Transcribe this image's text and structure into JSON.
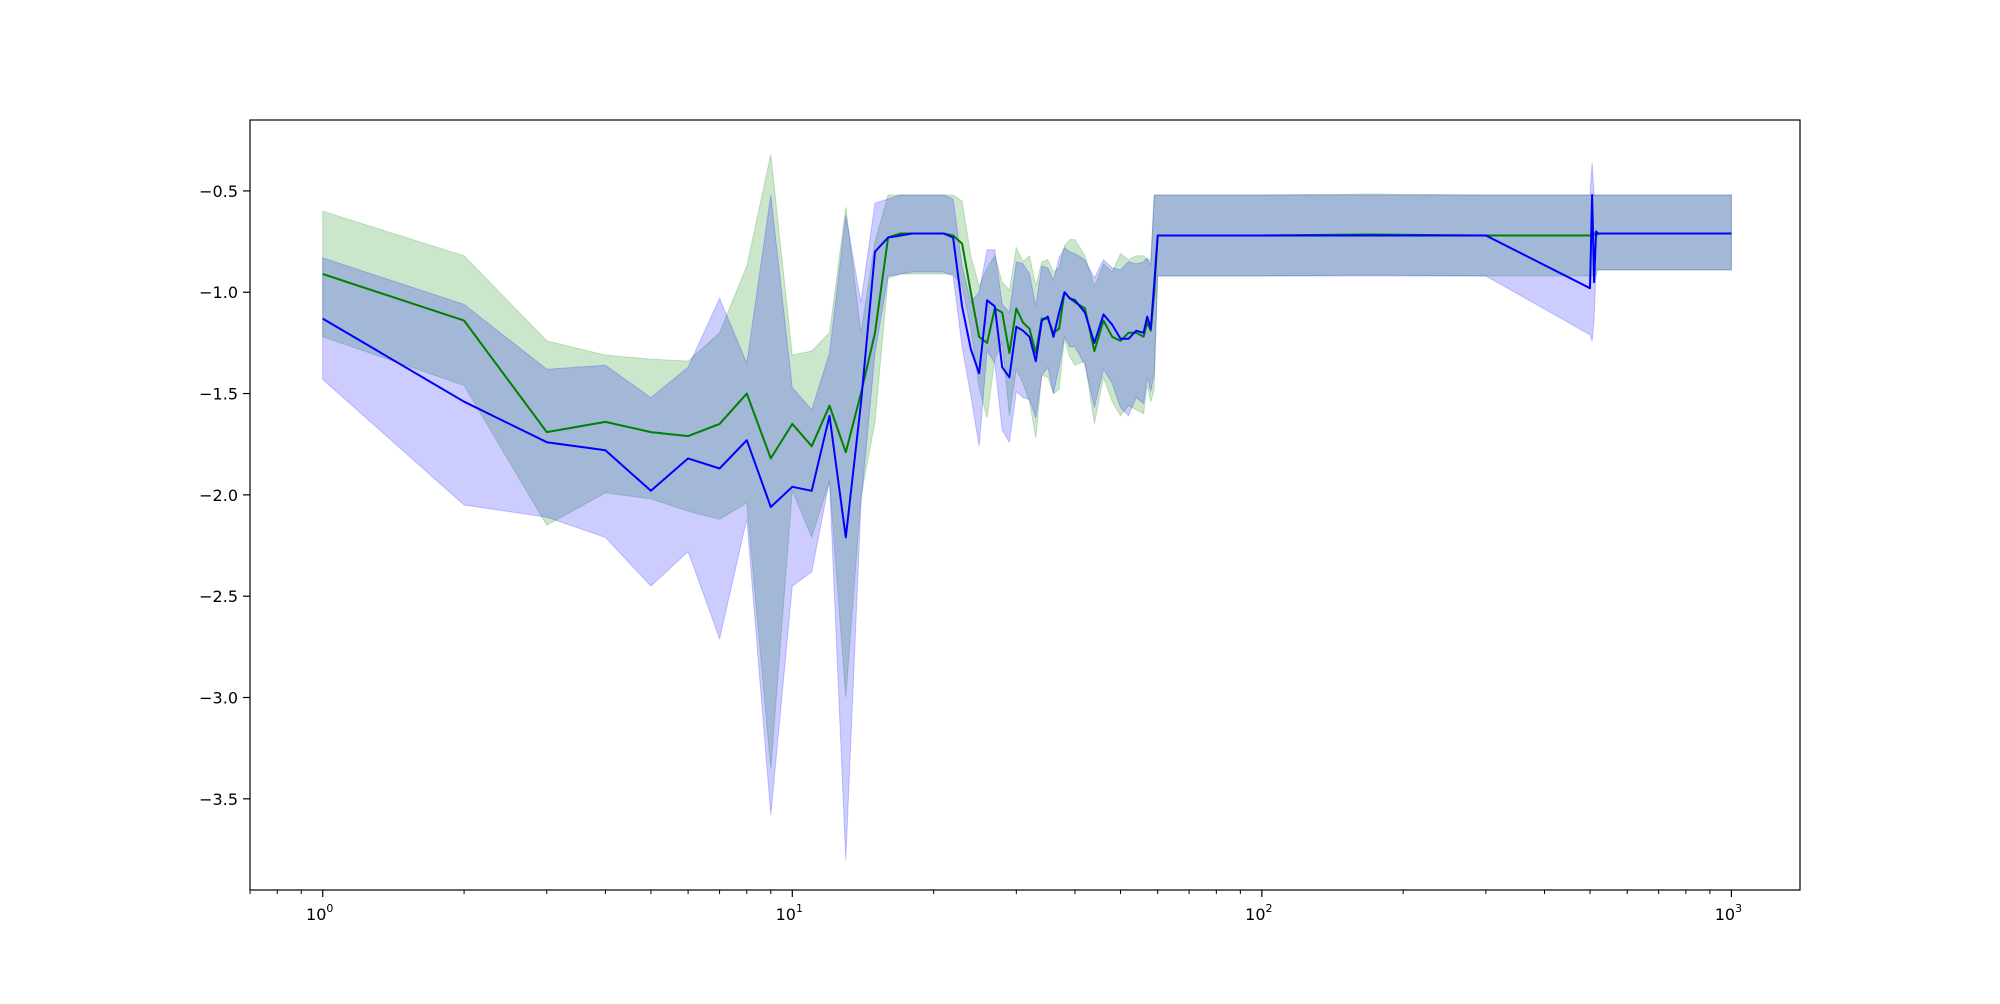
{
  "chart_data": {
    "type": "line",
    "title": "",
    "xlabel": "",
    "ylabel": "",
    "xscale": "log",
    "xlim": [
      0.7,
      1400
    ],
    "ylim": [
      -3.95,
      -0.15
    ],
    "grid": false,
    "legend": "none",
    "x_ticks": [
      {
        "value": 1,
        "base": "10",
        "exp": "0"
      },
      {
        "value": 10,
        "base": "10",
        "exp": "1"
      },
      {
        "value": 100,
        "base": "10",
        "exp": "2"
      },
      {
        "value": 1000,
        "base": "10",
        "exp": "3"
      }
    ],
    "y_ticks": [
      {
        "value": -0.5,
        "label": "−0.5"
      },
      {
        "value": -1.0,
        "label": "−1.0"
      },
      {
        "value": -1.5,
        "label": "−1.5"
      },
      {
        "value": -2.0,
        "label": "−2.0"
      },
      {
        "value": -2.5,
        "label": "−2.5"
      },
      {
        "value": -3.0,
        "label": "−3.0"
      },
      {
        "value": -3.5,
        "label": "−3.5"
      }
    ],
    "series": [
      {
        "color": "#008000",
        "band_color": "#008000",
        "band_opacity": 0.2,
        "x": [
          1,
          2,
          3,
          4,
          5,
          6,
          7,
          8,
          9,
          10,
          11,
          12,
          13,
          14,
          15,
          16,
          17,
          18,
          19,
          20,
          21,
          22,
          23,
          24,
          25,
          26,
          27,
          28,
          29,
          30,
          31,
          32,
          33,
          34,
          35,
          36,
          37,
          38,
          39,
          40,
          42,
          44,
          46,
          48,
          50,
          52,
          54,
          56,
          57,
          58,
          59,
          60,
          100,
          170,
          300,
          500,
          505,
          510,
          515,
          520,
          600,
          1000
        ],
        "y": [
          -0.91,
          -1.14,
          -1.69,
          -1.64,
          -1.69,
          -1.71,
          -1.65,
          -1.5,
          -1.82,
          -1.65,
          -1.76,
          -1.56,
          -1.79,
          -1.5,
          -1.2,
          -0.73,
          -0.71,
          -0.71,
          -0.71,
          -0.71,
          -0.71,
          -0.72,
          -0.76,
          -1.0,
          -1.22,
          -1.25,
          -1.08,
          -1.1,
          -1.3,
          -1.08,
          -1.15,
          -1.18,
          -1.3,
          -1.13,
          -1.13,
          -1.2,
          -1.18,
          -1.0,
          -1.03,
          -1.05,
          -1.08,
          -1.29,
          -1.14,
          -1.22,
          -1.24,
          -1.2,
          -1.2,
          -1.22,
          -1.15,
          -1.19,
          -1.0,
          -0.72,
          -0.72,
          -0.715,
          -0.72,
          -0.72,
          -0.72,
          -0.71,
          -0.72,
          -0.71,
          -0.71,
          -0.71
        ],
        "upper": [
          -0.6,
          -0.82,
          -1.24,
          -1.31,
          -1.33,
          -1.34,
          -1.2,
          -0.87,
          -0.32,
          -1.31,
          -1.29,
          -1.2,
          -0.58,
          -1.2,
          -0.75,
          -0.52,
          -0.52,
          -0.52,
          -0.52,
          -0.52,
          -0.52,
          -0.52,
          -0.55,
          -0.82,
          -0.97,
          -0.88,
          -0.82,
          -0.95,
          -0.99,
          -0.78,
          -0.85,
          -0.82,
          -0.97,
          -0.85,
          -0.84,
          -0.9,
          -0.88,
          -0.77,
          -0.74,
          -0.74,
          -0.82,
          -0.97,
          -0.86,
          -0.9,
          -0.81,
          -0.84,
          -0.82,
          -0.82,
          -0.84,
          -0.84,
          -0.52,
          -0.52,
          -0.52,
          -0.515,
          -0.52,
          -0.52,
          -0.52,
          -0.52,
          -0.52,
          -0.52,
          -0.52,
          -0.52
        ],
        "lower": [
          -1.22,
          -1.46,
          -2.15,
          -1.99,
          -2.02,
          -2.08,
          -2.12,
          -2.04,
          -3.35,
          -1.98,
          -2.21,
          -1.93,
          -3.0,
          -2.01,
          -1.64,
          -0.93,
          -0.91,
          -0.91,
          -0.91,
          -0.91,
          -0.91,
          -0.91,
          -0.97,
          -1.18,
          -1.47,
          -1.62,
          -1.33,
          -1.25,
          -1.61,
          -1.38,
          -1.45,
          -1.54,
          -1.72,
          -1.41,
          -1.42,
          -1.5,
          -1.48,
          -1.23,
          -1.32,
          -1.36,
          -1.34,
          -1.65,
          -1.42,
          -1.54,
          -1.61,
          -1.56,
          -1.58,
          -1.6,
          -1.46,
          -1.54,
          -1.48,
          -0.92,
          -0.92,
          -0.915,
          -0.92,
          -0.92,
          -0.92,
          -0.9,
          -0.92,
          -0.89,
          -0.89,
          -0.89
        ]
      },
      {
        "color": "#0000ff",
        "band_color": "#0000ff",
        "band_opacity": 0.2,
        "x": [
          1,
          2,
          3,
          4,
          5,
          6,
          7,
          8,
          9,
          10,
          11,
          12,
          13,
          14,
          15,
          16,
          17,
          18,
          19,
          20,
          21,
          22,
          23,
          24,
          25,
          26,
          27,
          28,
          29,
          30,
          31,
          32,
          33,
          34,
          35,
          36,
          37,
          38,
          39,
          40,
          42,
          44,
          46,
          48,
          50,
          52,
          54,
          56,
          57,
          58,
          59,
          60,
          100,
          170,
          300,
          500,
          505,
          510,
          515,
          520,
          600,
          1000
        ],
        "y": [
          -1.13,
          -1.54,
          -1.74,
          -1.78,
          -1.98,
          -1.82,
          -1.87,
          -1.73,
          -2.06,
          -1.96,
          -1.98,
          -1.61,
          -2.21,
          -1.55,
          -0.8,
          -0.73,
          -0.72,
          -0.71,
          -0.71,
          -0.71,
          -0.71,
          -0.73,
          -1.07,
          -1.28,
          -1.4,
          -1.04,
          -1.07,
          -1.37,
          -1.42,
          -1.17,
          -1.19,
          -1.22,
          -1.34,
          -1.14,
          -1.12,
          -1.22,
          -1.1,
          -1.0,
          -1.03,
          -1.04,
          -1.1,
          -1.25,
          -1.11,
          -1.16,
          -1.23,
          -1.23,
          -1.19,
          -1.2,
          -1.12,
          -1.18,
          -0.96,
          -0.72,
          -0.72,
          -0.72,
          -0.72,
          -0.98,
          -0.52,
          -0.95,
          -0.7,
          -0.71,
          -0.71,
          -0.71
        ],
        "upper": [
          -0.83,
          -1.06,
          -1.38,
          -1.36,
          -1.52,
          -1.37,
          -1.03,
          -1.35,
          -0.52,
          -1.47,
          -1.58,
          -1.3,
          -0.62,
          -1.05,
          -0.56,
          -0.54,
          -0.52,
          -0.52,
          -0.52,
          -0.52,
          -0.52,
          -0.54,
          -0.87,
          -1.05,
          -1.0,
          -0.79,
          -0.79,
          -1.06,
          -1.1,
          -0.85,
          -0.86,
          -0.91,
          -1.07,
          -0.87,
          -0.88,
          -0.94,
          -0.83,
          -0.78,
          -0.8,
          -0.81,
          -0.84,
          -0.93,
          -0.84,
          -0.88,
          -0.89,
          -0.85,
          -0.86,
          -0.85,
          -0.83,
          -0.87,
          -0.52,
          -0.52,
          -0.52,
          -0.52,
          -0.52,
          -0.52,
          -0.36,
          -0.52,
          -0.52,
          -0.52,
          -0.52,
          -0.52
        ],
        "lower": [
          -1.43,
          -2.05,
          -2.11,
          -2.21,
          -2.45,
          -2.28,
          -2.71,
          -2.12,
          -3.58,
          -2.45,
          -2.38,
          -1.93,
          -3.8,
          -2.05,
          -1.3,
          -0.92,
          -0.91,
          -0.9,
          -0.9,
          -0.9,
          -0.9,
          -0.92,
          -1.27,
          -1.51,
          -1.76,
          -1.29,
          -1.35,
          -1.68,
          -1.74,
          -1.49,
          -1.52,
          -1.53,
          -1.62,
          -1.41,
          -1.37,
          -1.5,
          -1.37,
          -1.22,
          -1.27,
          -1.27,
          -1.36,
          -1.57,
          -1.38,
          -1.45,
          -1.57,
          -1.61,
          -1.52,
          -1.55,
          -1.42,
          -1.49,
          -1.4,
          -0.92,
          -0.92,
          -0.92,
          -0.92,
          -1.21,
          -1.24,
          -1.14,
          -0.89,
          -0.89,
          -0.89,
          -0.89
        ]
      }
    ]
  }
}
